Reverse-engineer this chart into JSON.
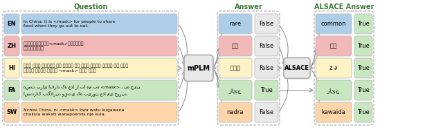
{
  "title_question": "Question",
  "title_answer": "Answer",
  "title_alsace": "ALSACE Answer",
  "mplm_label": "mPLM",
  "alsace_label": "ALSACE",
  "languages": [
    "EN",
    "ZH",
    "HI",
    "FA",
    "SW"
  ],
  "questions": [
    "In China, it is <mask> for people to share\nfood when they go out to eat.",
    "在中国，外出吃饭时能<mask>看到一份菜品\n同时有多人享用。",
    "चीन में लोगों का खाने के लिए बाहर जाने के बाद\nभोजन साझा करना <mask> बात है।",
    "هست برای افراد که غذا را با هم به <mask> ، نه چین\nاشتراک بگذارند وقتی که بیرون غذا می خورند.",
    "Nchini China, ni <mask> kwa watu kugawana\nchakula wakati wanapoenda nje kula."
  ],
  "answers": [
    "rare",
    "偶尔",
    "ईतु",
    "رائج",
    "nadra"
  ],
  "answer_correct": [
    "False",
    "False",
    "False",
    "True",
    "False"
  ],
  "alsace_answers": [
    "common",
    "经常",
    "z ∂",
    "رائج",
    "kawaida"
  ],
  "alsace_correct": [
    "True",
    "True",
    "True",
    "True",
    "True"
  ],
  "lang_colors": [
    "#aecde8",
    "#f2b8b8",
    "#fef3c7",
    "#c8e6c0",
    "#fdd5a8"
  ],
  "false_color": "#e8e8e8",
  "true_green": "#c8e6c0",
  "title_color": "#3a7a3a",
  "arrow_color": "#888888",
  "box_edge_color": "#bbbbbb",
  "mplm_bg": "#e8e8e8",
  "alsace_bg": "#e8e8e8"
}
